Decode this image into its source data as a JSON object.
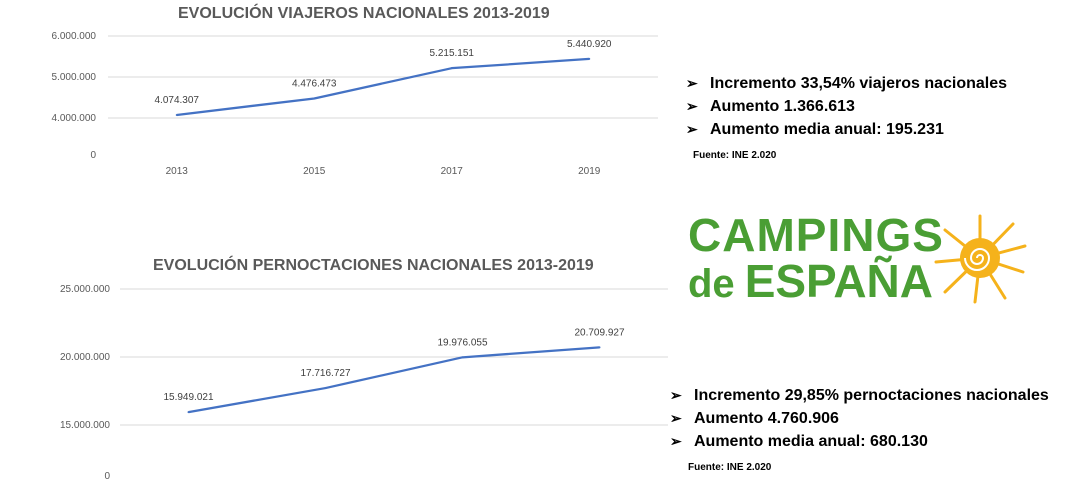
{
  "chart_data": [
    {
      "type": "line",
      "title": "EVOLUCIÓN VIAJEROS NACIONALES 2013-2019",
      "categories": [
        "2013",
        "2015",
        "2017",
        "2019"
      ],
      "values": [
        4074307,
        4476473,
        5215151,
        5440920
      ],
      "value_labels": [
        "4.074.307",
        "4.476.473",
        "5.215.151",
        "5.440.920"
      ],
      "yticks": [
        {
          "value": 0,
          "label": "0"
        },
        {
          "value": 4000000,
          "label": "4.000.000"
        },
        {
          "value": 5000000,
          "label": "5.000.000"
        },
        {
          "value": 6000000,
          "label": "6.000.000"
        }
      ],
      "y_axis_break": true,
      "ylim": [
        0,
        6000000
      ],
      "grid": true,
      "color": "#4472c4"
    },
    {
      "type": "line",
      "title": "EVOLUCIÓN PERNOCTACIONES NACIONALES 2013-2019",
      "categories": [
        "2013",
        "2015",
        "2017",
        "2019"
      ],
      "values": [
        15949021,
        17716727,
        19976055,
        20709927
      ],
      "value_labels": [
        "15.949.021",
        "17.716.727",
        "19.976.055",
        "20.709.927"
      ],
      "yticks": [
        {
          "value": 0,
          "label": "0"
        },
        {
          "value": 15000000,
          "label": "15.000.000"
        },
        {
          "value": 20000000,
          "label": "20.000.000"
        },
        {
          "value": 25000000,
          "label": "25.000.000"
        }
      ],
      "y_axis_break": true,
      "ylim": [
        0,
        25000000
      ],
      "grid": true,
      "color": "#4472c4"
    }
  ],
  "info1": {
    "bullets": [
      "Incremento 33,54% viajeros nacionales",
      "Aumento 1.366.613",
      "Aumento media anual:  195.231"
    ],
    "source": "Fuente: INE 2.020"
  },
  "info2": {
    "bullets": [
      "Incremento 29,85% pernoctaciones nacionales",
      "Aumento 4.760.906",
      "Aumento media anual:  680.130"
    ],
    "source": "Fuente: INE 2.020"
  },
  "logo": {
    "line1": "CAMPINGS",
    "line2_small": "de",
    "line2": "ESPAÑA",
    "color": "#4a9e34",
    "sun_color": "#f5b21b"
  },
  "bullet_icon": "arrow-bullet-icon"
}
